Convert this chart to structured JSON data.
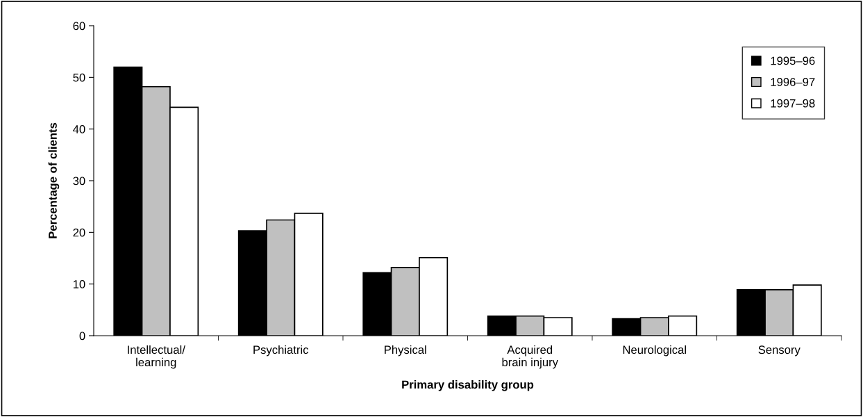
{
  "chart_data": {
    "type": "bar",
    "xlabel": "Primary disability group",
    "ylabel": "Percentage of clients",
    "categories": [
      "Intellectual/\nlearning",
      "Psychiatric",
      "Physical",
      "Acquired\nbrain injury",
      "Neurological",
      "Sensory"
    ],
    "series": [
      {
        "name": "1995–96",
        "color": "#000000",
        "values": [
          52.0,
          20.3,
          12.2,
          3.8,
          3.3,
          8.9
        ]
      },
      {
        "name": "1996–97",
        "color": "#c0c0c0",
        "values": [
          48.2,
          22.4,
          13.2,
          3.8,
          3.5,
          8.9
        ]
      },
      {
        "name": "1997–98",
        "color": "#ffffff",
        "values": [
          44.2,
          23.7,
          15.1,
          3.5,
          3.8,
          9.8
        ]
      }
    ],
    "ylim": [
      0,
      60
    ],
    "yticks": [
      0,
      10,
      20,
      30,
      40,
      50,
      60
    ],
    "grid": false,
    "legend": "top right"
  }
}
